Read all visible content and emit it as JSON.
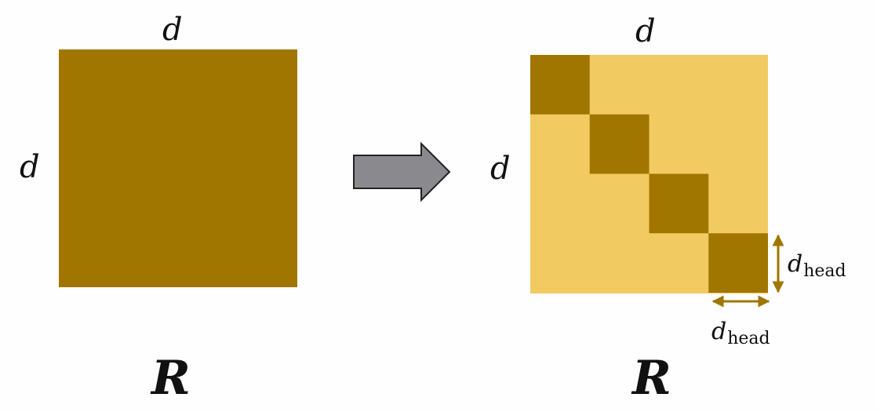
{
  "colors": {
    "dark_block": "#a07600",
    "light_block": "#f2ca62",
    "arrow_fill": "#8a8a8e",
    "arrow_stroke": "#222222",
    "dimension_arrow": "#a07600",
    "text": "#111111"
  },
  "left_matrix": {
    "top_label": "d",
    "side_label": "d",
    "caption": "R"
  },
  "right_matrix": {
    "top_label": "d",
    "side_label": "d",
    "caption": "R",
    "diagonal_blocks": 4,
    "head_dim_right": {
      "main": "d",
      "sub": "head"
    },
    "head_dim_bottom": {
      "main": "d",
      "sub": "head"
    }
  },
  "transition_arrow_icon": "right-arrow-icon"
}
